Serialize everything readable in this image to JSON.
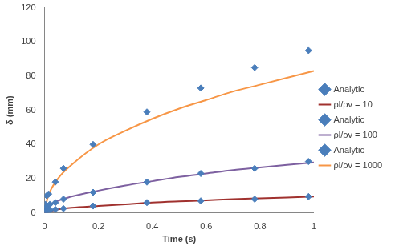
{
  "chart_data": {
    "type": "scatter",
    "x_label": "Time (s)",
    "y_label": "δ (mm)",
    "xlim": [
      0,
      1
    ],
    "xticks": [
      0,
      0.2,
      0.4,
      0.6,
      0.8,
      1
    ],
    "ylim": [
      0,
      120
    ],
    "yticks": [
      0,
      20,
      40,
      60,
      80,
      100,
      120
    ],
    "grid": false,
    "legend": "right",
    "series": [
      {
        "name": "Analytic",
        "type": "scatter",
        "marker": "diamond",
        "color": "#4a7ebb",
        "x": [
          0,
          0.005,
          0.01,
          0.02,
          0.04,
          0.07,
          0.18,
          0.38,
          0.58,
          0.78,
          0.98
        ],
        "values": [
          0.5,
          1,
          1.2,
          1.5,
          2,
          2.5,
          4,
          6,
          7,
          8,
          9.5
        ]
      },
      {
        "name": "ρl/ρv = 10",
        "type": "line",
        "line_style": "solid",
        "color": "#a0312e",
        "x": [
          0,
          0.05,
          0.1,
          0.2,
          0.3,
          0.4,
          0.5,
          0.6,
          0.7,
          0.8,
          0.9,
          1
        ],
        "values": [
          0,
          2,
          3,
          4,
          5,
          6,
          6.7,
          7.3,
          8,
          8.5,
          9,
          9.5
        ]
      },
      {
        "name": "Analytic",
        "type": "scatter",
        "marker": "diamond",
        "color": "#4a7ebb",
        "x": [
          0,
          0.005,
          0.01,
          0.02,
          0.04,
          0.07,
          0.18,
          0.38,
          0.58,
          0.78,
          0.98
        ],
        "values": [
          1,
          3,
          4,
          5,
          6,
          8,
          12,
          18,
          23,
          26,
          30
        ]
      },
      {
        "name": "ρl/ρv = 100",
        "type": "line",
        "line_style": "solid",
        "color": "#7d60a0",
        "x": [
          0,
          0.01,
          0.05,
          0.1,
          0.2,
          0.3,
          0.4,
          0.5,
          0.6,
          0.7,
          0.8,
          0.9,
          1
        ],
        "values": [
          0,
          3,
          7,
          9.5,
          13,
          16,
          18.5,
          21,
          23,
          25,
          26.5,
          28,
          29.5
        ]
      },
      {
        "name": "Analytic",
        "type": "scatter",
        "marker": "diamond",
        "color": "#4a7ebb",
        "x": [
          0,
          0.003,
          0.008,
          0.015,
          0.04,
          0.07,
          0.18,
          0.38,
          0.58,
          0.78,
          0.98
        ],
        "values": [
          2,
          5,
          10,
          11,
          18,
          26,
          40,
          59,
          73,
          85,
          95
        ]
      },
      {
        "name": "ρl/ρv = 1000",
        "type": "line",
        "line_style": "solid",
        "color": "#f79646",
        "x": [
          0,
          0.01,
          0.05,
          0.1,
          0.2,
          0.3,
          0.4,
          0.5,
          0.6,
          0.7,
          0.8,
          0.9,
          1
        ],
        "values": [
          0,
          8,
          20,
          28,
          40,
          48,
          55,
          61,
          66,
          71,
          75,
          79,
          83
        ]
      }
    ]
  }
}
